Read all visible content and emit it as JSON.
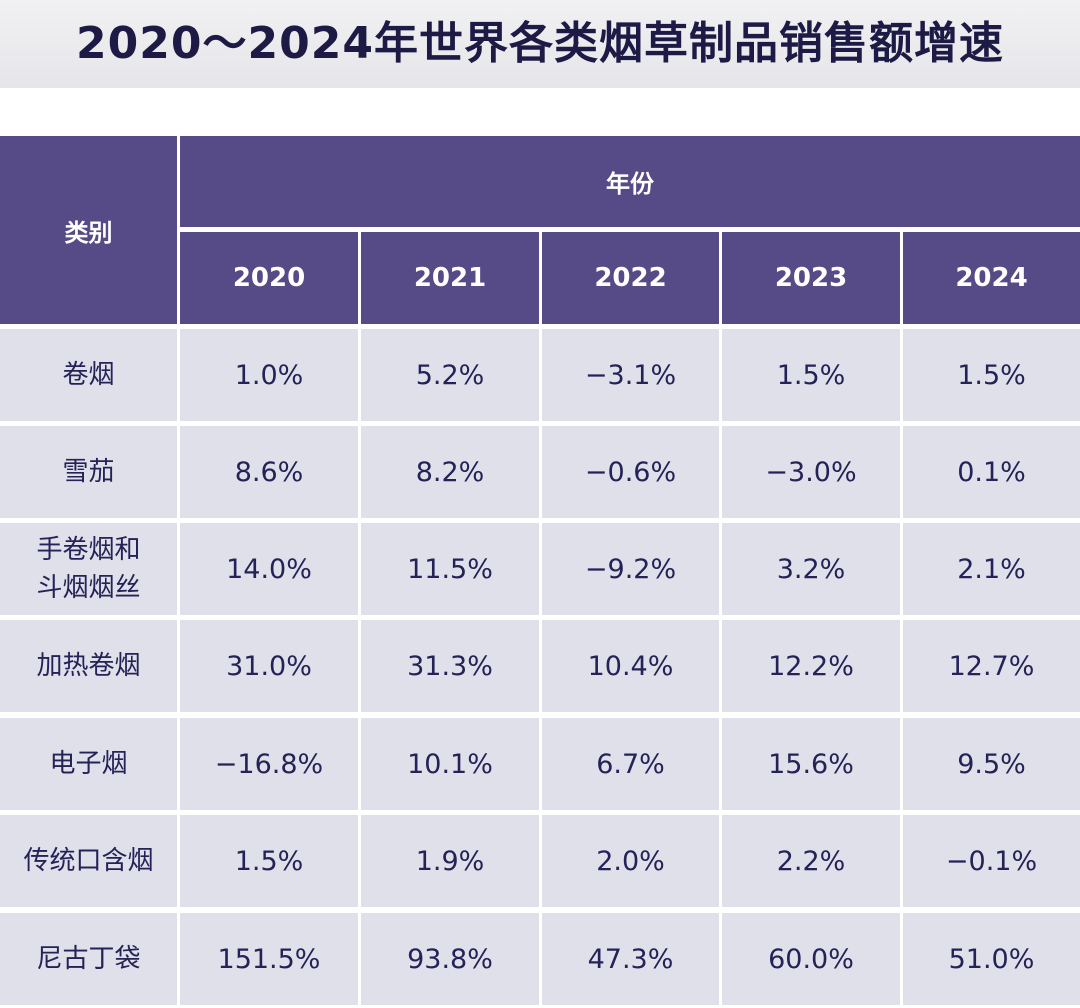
{
  "title": "2020～2024年世界各类烟草制品销售额增速",
  "table": {
    "category_header": "类别",
    "year_group_header": "年份",
    "years": [
      "2020",
      "2021",
      "2022",
      "2023",
      "2024"
    ],
    "rows": [
      {
        "category_lines": [
          "卷烟"
        ],
        "values": [
          "1.0%",
          "5.2%",
          "−3.1%",
          "1.5%",
          "1.5%"
        ]
      },
      {
        "category_lines": [
          "雪茄"
        ],
        "values": [
          "8.6%",
          "8.2%",
          "−0.6%",
          "−3.0%",
          "0.1%"
        ]
      },
      {
        "category_lines": [
          "手卷烟和",
          "斗烟烟丝"
        ],
        "values": [
          "14.0%",
          "11.5%",
          "−9.2%",
          "3.2%",
          "2.1%"
        ]
      },
      {
        "category_lines": [
          "加热卷烟"
        ],
        "values": [
          "31.0%",
          "31.3%",
          "10.4%",
          "12.2%",
          "12.7%"
        ]
      },
      {
        "category_lines": [
          "电子烟"
        ],
        "values": [
          "−16.8%",
          "10.1%",
          "6.7%",
          "15.6%",
          "9.5%"
        ]
      },
      {
        "category_lines": [
          "传统口含烟"
        ],
        "values": [
          "1.5%",
          "1.9%",
          "2.0%",
          "2.2%",
          "−0.1%"
        ]
      },
      {
        "category_lines": [
          "尼古丁袋"
        ],
        "values": [
          "151.5%",
          "93.8%",
          "47.3%",
          "60.0%",
          "51.0%"
        ]
      }
    ]
  }
}
